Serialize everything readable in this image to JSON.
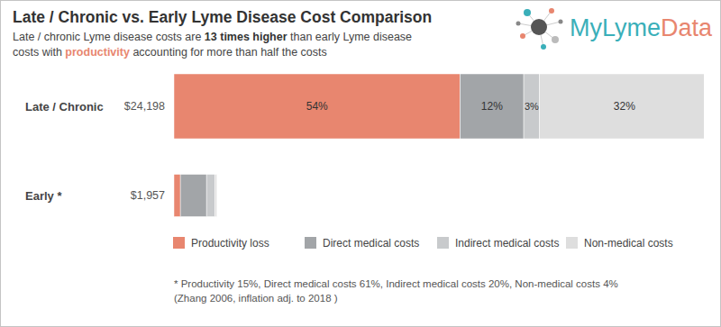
{
  "chart_data": {
    "type": "bar",
    "orientation": "horizontal",
    "stacked": true,
    "title": "Late / Chronic vs. Early Lyme Disease Cost Comparison",
    "subtitle": [
      [
        "Late / chronic Lyme disease costs are ",
        "13 times higher",
        " than early Lyme disease"
      ],
      [
        "costs with ",
        "productivity",
        " accounting for more than half the costs"
      ]
    ],
    "logo": [
      "MyLyme",
      "Data"
    ],
    "categories": [
      "Late / Chronic",
      "Early *"
    ],
    "totals": [
      24198,
      1957
    ],
    "total_labels": [
      "$24,198",
      "$1,957"
    ],
    "series": [
      {
        "name": "Productivity loss",
        "color": "#e8866f",
        "values": [
          54,
          15
        ],
        "value_labels": [
          "54%",
          null
        ]
      },
      {
        "name": "Direct medical costs",
        "color": "#a2a5a8",
        "values": [
          12,
          61
        ],
        "value_labels": [
          "12%",
          null
        ]
      },
      {
        "name": "Indirect medical costs",
        "color": "#c8cacc",
        "values": [
          3,
          20
        ],
        "value_labels": [
          "3%",
          null
        ]
      },
      {
        "name": "Non-medical costs",
        "color": "#dedede",
        "values": [
          32,
          4
        ],
        "value_labels": [
          "32%",
          null
        ]
      }
    ],
    "xlim": [
      0,
      24198
    ],
    "tick_labels": false,
    "data_labels": true,
    "legend": "bottom",
    "notes": [
      "* Productivity 15%, Direct medical costs 61%, Indirect medical costs 20%, Non-medical costs 4%",
      "(Zhang 2006, inflation adj. to 2018 )"
    ]
  }
}
